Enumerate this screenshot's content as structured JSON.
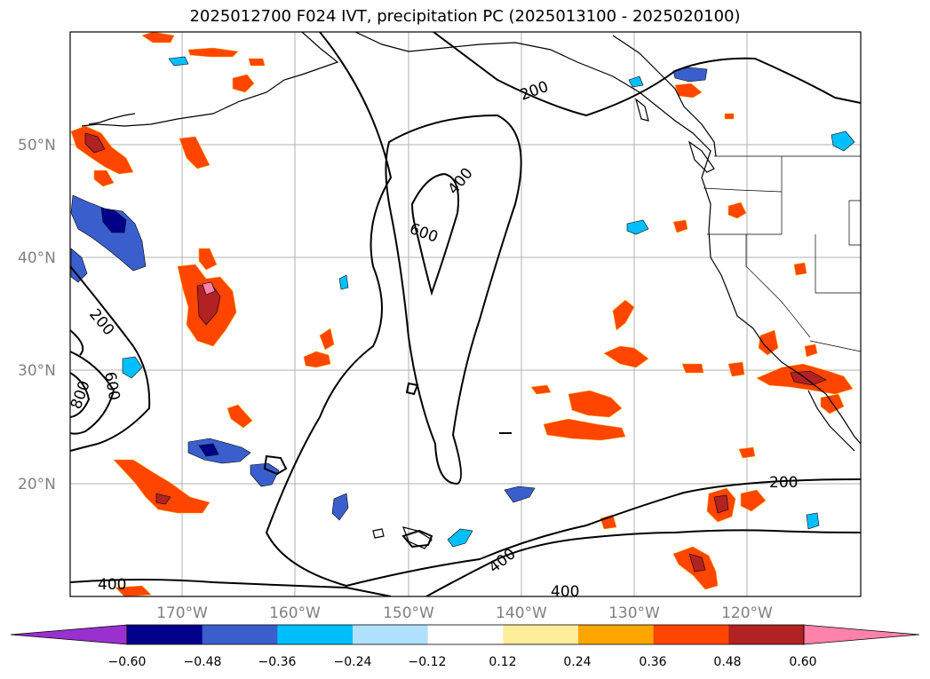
{
  "title": "2025012700 F024 IVT, precipitation PC (2025013100 - 2025020100)",
  "map": {
    "lat_labels": [
      "50°N",
      "40°N",
      "30°N",
      "20°N"
    ],
    "lon_labels": [
      "170°W",
      "160°W",
      "150°W",
      "140°W",
      "130°W",
      "120°W"
    ],
    "ivt_contour_labels": [
      "200",
      "400",
      "600",
      "200",
      "800",
      "600",
      "400",
      "400",
      "200",
      "400"
    ],
    "gridlines": true,
    "coastlines": true,
    "state_borders": true
  },
  "colorbar": {
    "colors": [
      "#9b30d0",
      "#00008b",
      "#3a5fcd",
      "#00bfff",
      "#b0e2ff",
      "#ffffff",
      "#ffee99",
      "#ffa500",
      "#ff4500",
      "#b22222",
      "#ff82ab"
    ],
    "tick_labels": [
      "−0.60",
      "−0.48",
      "−0.36",
      "−0.24",
      "−0.12",
      "0.12",
      "0.24",
      "0.36",
      "0.48",
      "0.60"
    ],
    "extend": "both"
  },
  "palette": {
    "neg_deep": "#00008b",
    "neg_mid": "#3a5fcd",
    "neg_light": "#00bfff",
    "pos_light": "#ffee99",
    "pos_orange": "#ffa500",
    "pos_red": "#ff4500",
    "pos_dark": "#b22222",
    "pos_pink": "#ff82ab"
  }
}
